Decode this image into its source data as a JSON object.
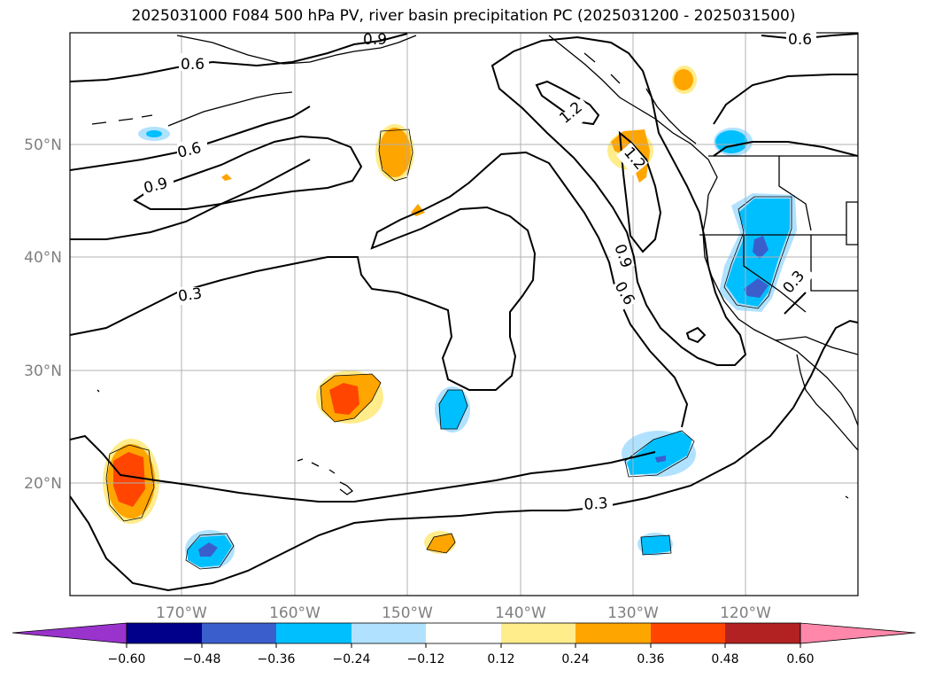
{
  "title": "2025031000 F084 500 hPa PV, river basin precipitation PC (2025031200 - 2025031500)",
  "lat_labels": [
    "50°N",
    "40°N",
    "30°N",
    "20°N"
  ],
  "lon_labels": [
    "170°W",
    "160°W",
    "150°W",
    "140°W",
    "130°W",
    "120°W"
  ],
  "contour_labels": [
    "0.6",
    "0.6",
    "0.6",
    "0.9",
    "0.9",
    "0.3",
    "1.2",
    "1.2",
    "0.9",
    "0.6",
    "0.3",
    "0.3"
  ],
  "colorbar": {
    "ticks": [
      "−0.60",
      "−0.48",
      "−0.36",
      "−0.24",
      "−0.12",
      "0.12",
      "0.24",
      "0.36",
      "0.48",
      "0.60"
    ],
    "colors": [
      "#9933cc",
      "#00008b",
      "#3a5fcd",
      "#00bfff",
      "#b0e2ff",
      "#ffffff",
      "#ffec8b",
      "#ffa500",
      "#ff4500",
      "#b22222",
      "#ff88aa",
      "#ff88aa"
    ]
  },
  "colors": {
    "orange": "#ffa500",
    "red_orange": "#ff4500",
    "light_yellow": "#ffec8b",
    "deep_sky_blue": "#00bfff",
    "light_blue": "#b0e2ff",
    "royal_blue": "#3a5fcd",
    "grid": "#b0b0b0"
  }
}
